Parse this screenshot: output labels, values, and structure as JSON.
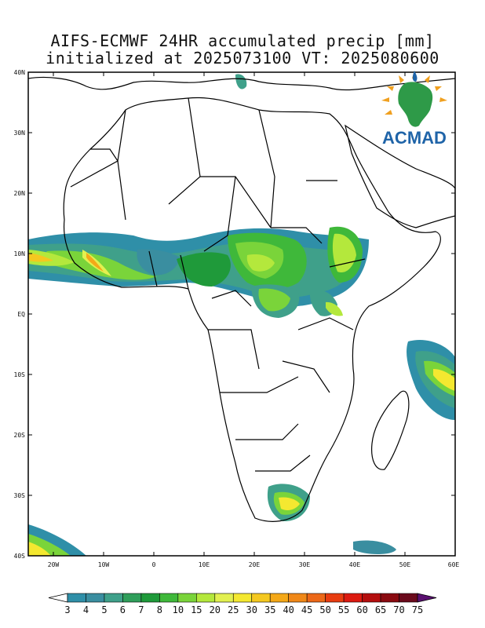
{
  "title": {
    "line1": "AIFS-ECMWF 24HR accumulated precip [mm]",
    "line2": "initialized at 2025073100 VT: 2025080600"
  },
  "axes": {
    "lat_labels": [
      "40N",
      "30N",
      "20N",
      "10N",
      "EQ",
      "10S",
      "20S",
      "30S",
      "40S"
    ],
    "lon_labels": [
      "20W",
      "10W",
      "0",
      "10E",
      "20E",
      "30E",
      "40E",
      "50E",
      "60E"
    ],
    "lat_range": [
      -40,
      40
    ],
    "lon_range": [
      -25,
      60
    ]
  },
  "legend": {
    "levels": [
      "3",
      "4",
      "5",
      "6",
      "7",
      "8",
      "10",
      "15",
      "20",
      "25",
      "30",
      "35",
      "40",
      "45",
      "50",
      "55",
      "60",
      "65",
      "70",
      "75"
    ],
    "colors": [
      "#2f8fa8",
      "#3a8ea0",
      "#3fa08a",
      "#2f9e5a",
      "#1f9a3a",
      "#3fb83a",
      "#7ad43a",
      "#b4e83c",
      "#e2f050",
      "#f4e830",
      "#f4c820",
      "#f4a818",
      "#f08818",
      "#ec6818",
      "#e83c10",
      "#dc1a10",
      "#b40e0e",
      "#8a0a10",
      "#6a0a1c",
      "#5a1070"
    ]
  },
  "logo": {
    "text": "ACMAD",
    "brand_color": "#1f64a8",
    "accent_color": "#f0a020"
  }
}
